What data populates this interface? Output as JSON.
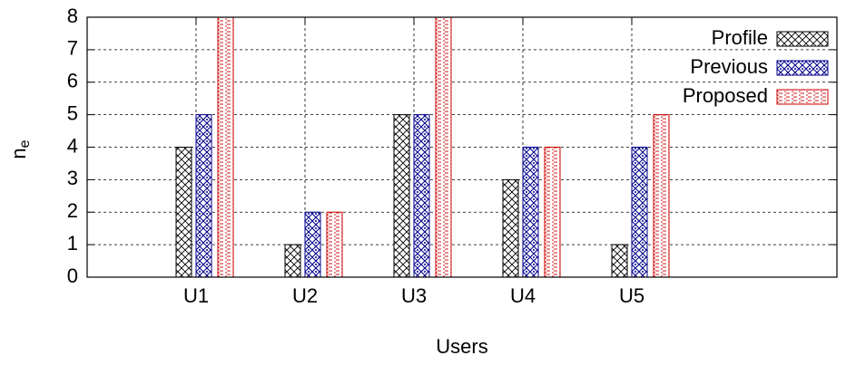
{
  "chart_data": {
    "type": "bar",
    "xlabel": "Users",
    "ylabel": "n",
    "ylabel_subscript": "e",
    "categories": [
      "U1",
      "U2",
      "U3",
      "U4",
      "U5"
    ],
    "series": [
      {
        "name": "Profile",
        "color": "#000000",
        "values": [
          4,
          1,
          5,
          3,
          1
        ]
      },
      {
        "name": "Previous",
        "color": "#00008b",
        "values": [
          5,
          2,
          5,
          4,
          4
        ]
      },
      {
        "name": "Proposed",
        "color": "#cc0000",
        "values": [
          8,
          2,
          8,
          4,
          5
        ]
      }
    ],
    "ylim": [
      0,
      8
    ],
    "yticks": [
      0,
      1,
      2,
      3,
      4,
      5,
      6,
      7,
      8
    ],
    "grid": true,
    "legend": "top-right"
  }
}
